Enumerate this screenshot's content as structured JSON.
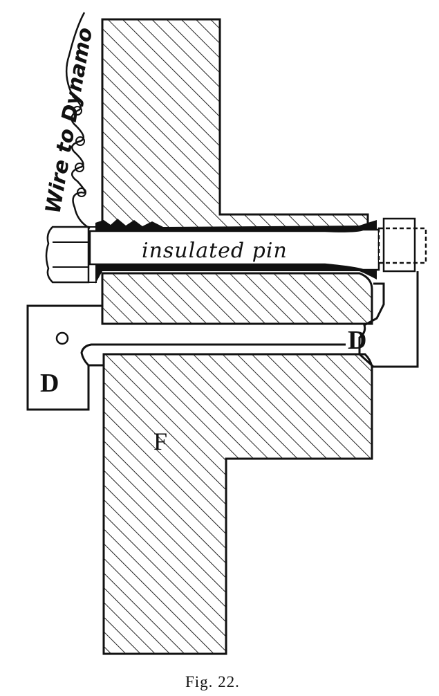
{
  "labels": {
    "wire": "Wire to Dynamo",
    "pin": "insulated pin",
    "d_left": "D",
    "d_right": "D",
    "f": "F",
    "circle_mark": "O"
  },
  "caption": "Fig. 22."
}
